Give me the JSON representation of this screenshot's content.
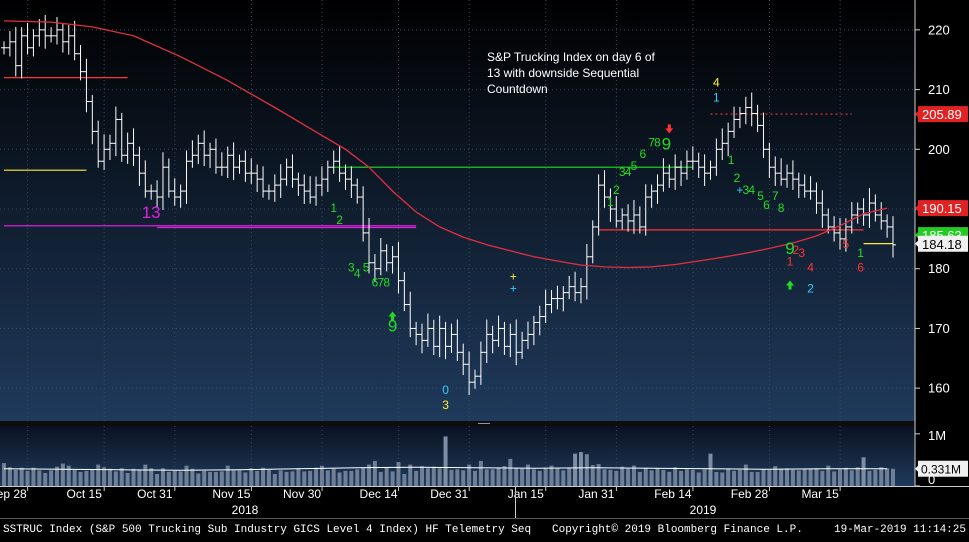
{
  "annotation": "S&P Trucking Index on day 6 of 13 with downside Sequential Countdown",
  "footer": {
    "left": "SSTRUC Index (S&P 500 Trucking Sub Industry GICS Level 4 Index) HF Telemetry Seq",
    "copyright": "Copyright© 2019 Bloomberg Finance L.P.",
    "timestamp": "19-Mar-2019 11:14:25"
  },
  "colors": {
    "background_top": "#000000",
    "background_bottom": "#1f3a5c",
    "bars": "#ffffff",
    "ma": "#e03040",
    "green": "#22dd22",
    "red": "#ff3333",
    "cyan": "#33ccff",
    "yellow": "#ffee33",
    "magenta": "#dd22dd"
  },
  "chart_data": [
    {
      "type": "ohlc",
      "x_tick_labels": [
        "Sep 28",
        "Oct 15",
        "Oct 31",
        "Nov 15",
        "Nov 30",
        "Dec 14",
        "Dec 31",
        "Jan 15",
        "Jan 31",
        "Feb 14",
        "Feb 28",
        "Mar 15"
      ],
      "x_year_labels": [
        "2018",
        "2019"
      ],
      "y_ticks": [
        160,
        170,
        180,
        190,
        200,
        210,
        220
      ],
      "ylim": [
        154.5,
        225
      ],
      "grid": true,
      "close": [
        217,
        218,
        214,
        219,
        217,
        219,
        220,
        219,
        219,
        220,
        218,
        219,
        216,
        213,
        208,
        203,
        198,
        200,
        201,
        205,
        199,
        201,
        199,
        196,
        193,
        193,
        192,
        197,
        193,
        192,
        193,
        198,
        199,
        201,
        199,
        200,
        197,
        197,
        199,
        197,
        198,
        196,
        196,
        195,
        193,
        193,
        194,
        195,
        197,
        195,
        194,
        193,
        192,
        194,
        195,
        197,
        198,
        196,
        195,
        194,
        192,
        186,
        181,
        180,
        183,
        181,
        182,
        178,
        174,
        170,
        169,
        168,
        170,
        167,
        170,
        167,
        169,
        166,
        164,
        161,
        162,
        166,
        169,
        168,
        170,
        167,
        169,
        166,
        168,
        169,
        171,
        172,
        174,
        175,
        175,
        176,
        177,
        176,
        177,
        182,
        187,
        194,
        192,
        190,
        188,
        189,
        188,
        189,
        187,
        192,
        193,
        194,
        196,
        195,
        197,
        196,
        198,
        198,
        197,
        196,
        197,
        200,
        201,
        203,
        205,
        206,
        207,
        206,
        204,
        200,
        197,
        196,
        195,
        196,
        195,
        194,
        193,
        193,
        191,
        189,
        187,
        186,
        185,
        187,
        189,
        190,
        189,
        191,
        189,
        188,
        187,
        184
      ],
      "series": [
        {
          "name": "",
          "kind": "moving-average",
          "values": [
            [
              0,
              221.5
            ],
            [
              8,
              221.3
            ],
            [
              15,
              220.5
            ],
            [
              22,
              219
            ],
            [
              30,
              215.5
            ],
            [
              38,
              211.5
            ],
            [
              46,
              207
            ],
            [
              52,
              203.5
            ],
            [
              58,
              200
            ],
            [
              62,
              197
            ],
            [
              66,
              193
            ],
            [
              70,
              189.5
            ],
            [
              74,
              187
            ],
            [
              78,
              185.3
            ],
            [
              82,
              184
            ],
            [
              86,
              183
            ],
            [
              90,
              182
            ],
            [
              94,
              181.3
            ],
            [
              98,
              180.6
            ],
            [
              102,
              180.3
            ],
            [
              106,
              180.2
            ],
            [
              110,
              180.3
            ],
            [
              114,
              180.7
            ],
            [
              118,
              181.3
            ],
            [
              122,
              181.9
            ],
            [
              126,
              182.6
            ],
            [
              130,
              183.4
            ],
            [
              134,
              184.3
            ],
            [
              138,
              185.5
            ],
            [
              142,
              187.2
            ],
            [
              146,
              189.2
            ],
            [
              150,
              190.15
            ]
          ]
        }
      ],
      "reference_lines": [
        {
          "from": 0,
          "to": 21,
          "value": 212,
          "color": "red"
        },
        {
          "from": 0,
          "to": 14,
          "value": 196.5,
          "color": "yellow"
        },
        {
          "from": 0,
          "to": 70,
          "value": 187.2,
          "color": "magenta"
        },
        {
          "from": 26,
          "to": 70,
          "value": 186.9,
          "color": "magenta"
        },
        {
          "from": 56,
          "to": 117,
          "value": 197,
          "color": "green"
        },
        {
          "from": 101,
          "to": 146,
          "value": 186.5,
          "color": "red"
        },
        {
          "from": 120,
          "to": 144,
          "value": 205.9,
          "color": "red",
          "dashed": true
        },
        {
          "from": 146,
          "to": 151,
          "value": 184.2,
          "color": "yellow"
        }
      ],
      "price_labels": [
        {
          "text": "205.89",
          "value": 205.89,
          "bg": "#e22222",
          "fg": "#ffffff"
        },
        {
          "text": "190.15",
          "value": 190.15,
          "bg": "#e22222",
          "fg": "#ffffff"
        },
        {
          "text": "185.63",
          "value": 185.63,
          "bg": "#22cc22",
          "fg": "#ffffff"
        },
        {
          "text": "184.18",
          "value": 184.18,
          "bg": "#f0f0f0",
          "fg": "#000000"
        }
      ],
      "markers": [
        {
          "text": "13",
          "x": 25,
          "y": 188.5,
          "color": "magenta",
          "size": 17
        },
        {
          "text": "1",
          "x": 56,
          "y": 189.5,
          "color": "green"
        },
        {
          "text": "2",
          "x": 57,
          "y": 187.5,
          "color": "green"
        },
        {
          "text": "3",
          "x": 59,
          "y": 179.5,
          "color": "green"
        },
        {
          "text": "4",
          "x": 60,
          "y": 178.5,
          "color": "green"
        },
        {
          "text": "5",
          "x": 61.5,
          "y": 179.5,
          "color": "green"
        },
        {
          "text": "6",
          "x": 63,
          "y": 177,
          "color": "green"
        },
        {
          "text": "7",
          "x": 64,
          "y": 177,
          "color": "green"
        },
        {
          "text": "8",
          "x": 65,
          "y": 177,
          "color": "green"
        },
        {
          "text": "9",
          "x": 66,
          "y": 169.5,
          "color": "green",
          "size": 17
        },
        {
          "text": "0",
          "x": 75,
          "y": 159,
          "color": "cyan"
        },
        {
          "text": "3",
          "x": 75,
          "y": 156.5,
          "color": "yellow"
        },
        {
          "text": "+",
          "x": 86.5,
          "y": 178,
          "color": "yellow"
        },
        {
          "text": "+",
          "x": 86.5,
          "y": 176,
          "color": "cyan"
        },
        {
          "text": "1",
          "x": 103,
          "y": 190.5,
          "color": "green"
        },
        {
          "text": "2",
          "x": 104,
          "y": 192.5,
          "color": "green"
        },
        {
          "text": "3",
          "x": 105,
          "y": 195.5,
          "color": "green"
        },
        {
          "text": "4",
          "x": 106,
          "y": 195.5,
          "color": "green"
        },
        {
          "text": "5",
          "x": 107,
          "y": 196.5,
          "color": "green"
        },
        {
          "text": "6",
          "x": 108.5,
          "y": 198.5,
          "color": "green"
        },
        {
          "text": "7",
          "x": 110,
          "y": 200.5,
          "color": "green"
        },
        {
          "text": "8",
          "x": 111,
          "y": 200.5,
          "color": "green"
        },
        {
          "text": "9",
          "x": 112.5,
          "y": 200,
          "color": "green",
          "size": 17
        },
        {
          "text": "4",
          "x": 121,
          "y": 210.5,
          "color": "yellow"
        },
        {
          "text": "1",
          "x": 121,
          "y": 208,
          "color": "cyan"
        },
        {
          "text": "1",
          "x": 123.5,
          "y": 197.5,
          "color": "green"
        },
        {
          "text": "2",
          "x": 124.5,
          "y": 194.5,
          "color": "green"
        },
        {
          "text": "+",
          "x": 125,
          "y": 192.5,
          "color": "cyan"
        },
        {
          "text": "3",
          "x": 126,
          "y": 192.5,
          "color": "green"
        },
        {
          "text": "4",
          "x": 127,
          "y": 192.5,
          "color": "green"
        },
        {
          "text": "5",
          "x": 128.5,
          "y": 191.5,
          "color": "green"
        },
        {
          "text": "6",
          "x": 129.5,
          "y": 190,
          "color": "green"
        },
        {
          "text": "7",
          "x": 131,
          "y": 191.5,
          "color": "green"
        },
        {
          "text": "8",
          "x": 132,
          "y": 189.5,
          "color": "green"
        },
        {
          "text": "9",
          "x": 133.5,
          "y": 182.5,
          "color": "green",
          "size": 17
        },
        {
          "text": "1",
          "x": 133.5,
          "y": 180.5,
          "color": "red"
        },
        {
          "text": "2",
          "x": 134.5,
          "y": 182.5,
          "color": "red"
        },
        {
          "text": "3",
          "x": 135.5,
          "y": 182,
          "color": "red"
        },
        {
          "text": "4",
          "x": 137,
          "y": 179.5,
          "color": "red"
        },
        {
          "text": "2",
          "x": 137,
          "y": 176,
          "color": "cyan"
        },
        {
          "text": "5",
          "x": 143,
          "y": 183.5,
          "color": "red"
        },
        {
          "text": "1",
          "x": 145.5,
          "y": 182,
          "color": "green"
        },
        {
          "text": "6",
          "x": 145.5,
          "y": 179.5,
          "color": "red"
        }
      ],
      "arrows": [
        {
          "x": 66,
          "y": 172,
          "dir": "up",
          "color": "green"
        },
        {
          "x": 113,
          "y": 203.5,
          "dir": "down",
          "color": "red"
        },
        {
          "x": 133.5,
          "y": 177.2,
          "dir": "up",
          "color": "green"
        }
      ]
    },
    {
      "type": "bar",
      "name": "volume",
      "y_ticks": [
        {
          "label": "1M",
          "value": 1000000
        },
        {
          "label": "0",
          "value": 0
        }
      ],
      "ylim": [
        0,
        1150000
      ],
      "current_label": "0.331M",
      "average": [
        [
          0,
          0.33
        ],
        [
          10,
          0.32
        ],
        [
          20,
          0.31
        ],
        [
          30,
          0.3
        ],
        [
          40,
          0.31
        ],
        [
          50,
          0.33
        ],
        [
          60,
          0.35
        ],
        [
          70,
          0.36
        ],
        [
          80,
          0.35
        ],
        [
          90,
          0.34
        ],
        [
          100,
          0.35
        ],
        [
          110,
          0.34
        ],
        [
          120,
          0.33
        ],
        [
          130,
          0.32
        ],
        [
          140,
          0.33
        ],
        [
          150,
          0.331
        ]
      ],
      "values": [
        0.44,
        0.36,
        0.31,
        0.35,
        0.29,
        0.35,
        0.3,
        0.25,
        0.3,
        0.37,
        0.43,
        0.39,
        0.31,
        0.27,
        0.29,
        0.32,
        0.41,
        0.36,
        0.33,
        0.28,
        0.34,
        0.25,
        0.33,
        0.31,
        0.41,
        0.34,
        0.23,
        0.34,
        0.27,
        0.29,
        0.28,
        0.39,
        0.33,
        0.24,
        0.29,
        0.27,
        0.27,
        0.28,
        0.39,
        0.3,
        0.3,
        0.26,
        0.34,
        0.29,
        0.35,
        0.31,
        0.23,
        0.3,
        0.27,
        0.28,
        0.34,
        0.28,
        0.29,
        0.35,
        0.39,
        0.3,
        0.33,
        0.26,
        0.29,
        0.29,
        0.32,
        0.35,
        0.41,
        0.48,
        0.27,
        0.36,
        0.28,
        0.46,
        0.23,
        0.41,
        0.29,
        0.38,
        0.34,
        0.37,
        0.34,
        0.38,
        0.31,
        0.32,
        0.3,
        0.41,
        0.29,
        0.48,
        0.32,
        0.32,
        0.35,
        0.38,
        0.52,
        0.34,
        0.33,
        0.41,
        0.32,
        0.29,
        0.34,
        0.39,
        0.35,
        0.3,
        0.34,
        0.35,
        0.45,
        0.61,
        0.4,
        0.42,
        0.32,
        0.31,
        0.29,
        0.37,
        0.33,
        0.39,
        0.27,
        0.35,
        0.3,
        0.34,
        0.31,
        0.27,
        0.36,
        0.29,
        0.32,
        0.31,
        0.26,
        0.32,
        0.31,
        0.27,
        0.26,
        0.33,
        0.29,
        0.31,
        0.41,
        0.27,
        0.27,
        0.32,
        0.31,
        0.38,
        0.33,
        0.34,
        0.31,
        0.3,
        0.32,
        0.33,
        0.34,
        0.29,
        0.39,
        0.28,
        0.32,
        0.35,
        0.3,
        0.36,
        0.33,
        0.29,
        0.31,
        0.36,
        0.34,
        0.33
      ],
      "spikes": [
        {
          "x": 75,
          "value": 0.95
        },
        {
          "x": 97,
          "value": 0.62
        },
        {
          "x": 98,
          "value": 0.65
        },
        {
          "x": 120,
          "value": 0.62
        },
        {
          "x": 146,
          "value": 0.55
        }
      ]
    }
  ]
}
